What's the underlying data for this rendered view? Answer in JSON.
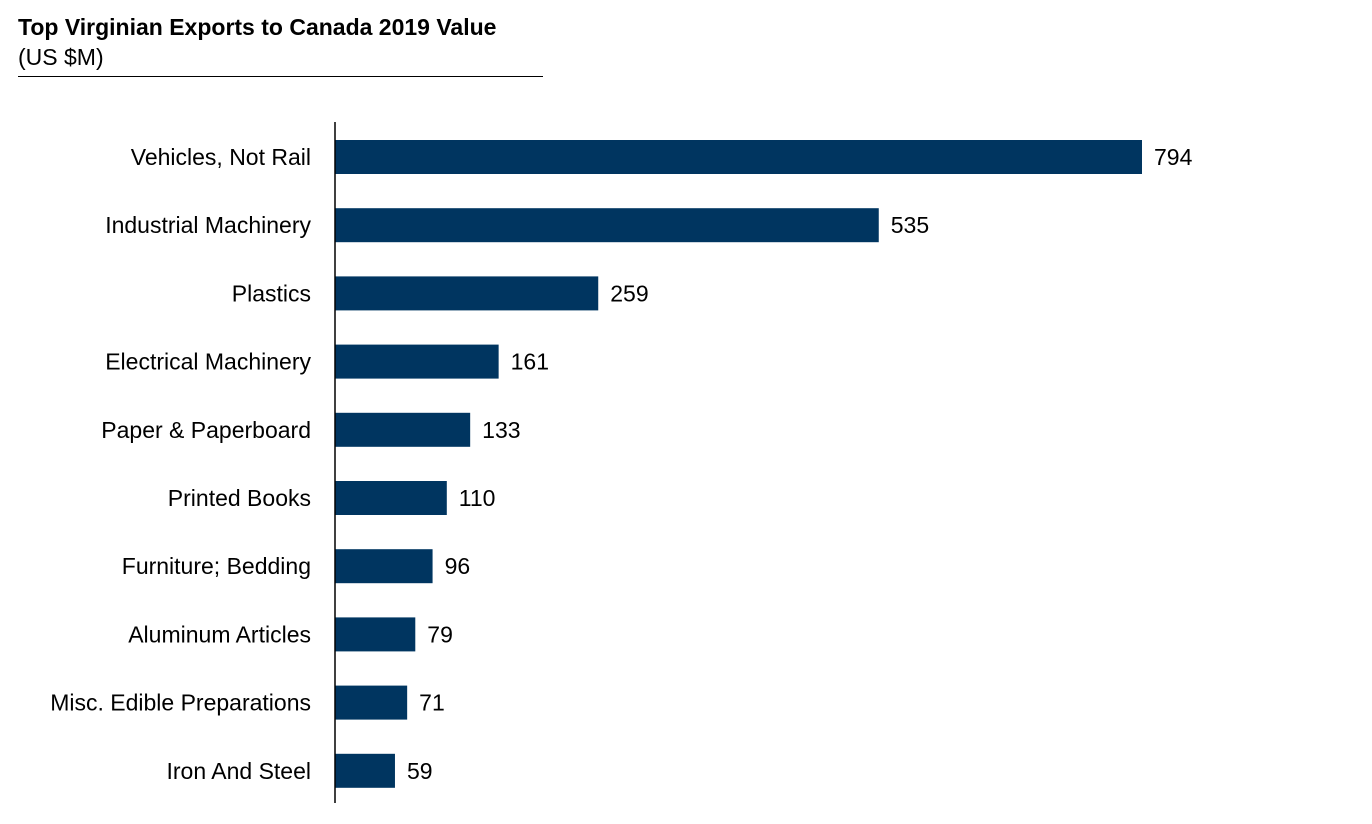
{
  "chart_data": {
    "type": "bar",
    "orientation": "horizontal",
    "title": "Top Virginian Exports to Canada 2019 Value",
    "subtitle": "(US $M)",
    "categories": [
      "Vehicles, Not Rail",
      "Industrial Machinery",
      "Plastics",
      "Electrical Machinery",
      "Paper & Paperboard",
      "Printed Books",
      "Furniture; Bedding",
      "Aluminum Articles",
      "Misc. Edible Preparations",
      "Iron And Steel"
    ],
    "values": [
      794,
      535,
      259,
      161,
      133,
      110,
      96,
      79,
      71,
      59
    ],
    "xlabel": "",
    "ylabel": "",
    "xlim": [
      0,
      794
    ],
    "grid": false,
    "data_labels": true,
    "bar_color": "#003560"
  }
}
